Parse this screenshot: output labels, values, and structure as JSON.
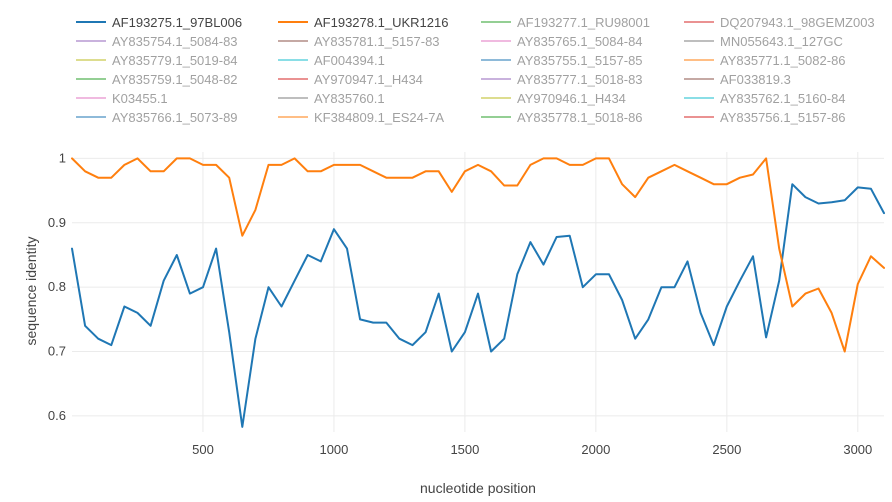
{
  "chart_data": {
    "type": "line",
    "title": "",
    "xlabel": "nucleotide position",
    "ylabel": "sequence identity",
    "xlim": [
      0,
      3100
    ],
    "ylim": [
      0.575,
      1.01
    ],
    "xticks": [
      500,
      1000,
      1500,
      2000,
      2500,
      3000
    ],
    "xtick_labels": [
      "500",
      "1000",
      "1500",
      "2000",
      "2500",
      "3000"
    ],
    "yticks": [
      0.6,
      0.7,
      0.8,
      0.9,
      1
    ],
    "ytick_labels": [
      "0.6",
      "0.7",
      "0.8",
      "0.9",
      "1"
    ],
    "grid": true,
    "legend_position": "top",
    "series": [
      {
        "name": "AF193275.1_97BL006",
        "color": "#1f77b4",
        "visible": true,
        "x": [
          0,
          50,
          100,
          150,
          200,
          250,
          300,
          350,
          400,
          450,
          500,
          550,
          600,
          650,
          700,
          750,
          800,
          850,
          900,
          950,
          1000,
          1050,
          1100,
          1150,
          1200,
          1250,
          1300,
          1350,
          1400,
          1450,
          1500,
          1550,
          1600,
          1650,
          1700,
          1750,
          1800,
          1850,
          1900,
          1950,
          2000,
          2050,
          2100,
          2150,
          2200,
          2250,
          2300,
          2350,
          2400,
          2450,
          2500,
          2550,
          2600,
          2650,
          2700,
          2750,
          2800,
          2850,
          2900,
          2950,
          3000,
          3050,
          3100
        ],
        "y": [
          0.86,
          0.74,
          0.72,
          0.71,
          0.77,
          0.76,
          0.74,
          0.81,
          0.85,
          0.79,
          0.8,
          0.86,
          0.73,
          0.583,
          0.72,
          0.8,
          0.77,
          0.81,
          0.85,
          0.84,
          0.89,
          0.86,
          0.75,
          0.745,
          0.745,
          0.72,
          0.71,
          0.73,
          0.79,
          0.7,
          0.73,
          0.79,
          0.7,
          0.72,
          0.82,
          0.87,
          0.835,
          0.878,
          0.88,
          0.8,
          0.82,
          0.82,
          0.78,
          0.72,
          0.75,
          0.8,
          0.8,
          0.84,
          0.76,
          0.71,
          0.77,
          0.81,
          0.848,
          0.722,
          0.81,
          0.96,
          0.94,
          0.93,
          0.932,
          0.935,
          0.955,
          0.953,
          0.915
        ]
      },
      {
        "name": "AF193278.1_UKR1216",
        "color": "#ff7f0e",
        "visible": true,
        "x": [
          0,
          50,
          100,
          150,
          200,
          250,
          300,
          350,
          400,
          450,
          500,
          550,
          600,
          650,
          700,
          750,
          800,
          850,
          900,
          950,
          1000,
          1050,
          1100,
          1150,
          1200,
          1250,
          1300,
          1350,
          1400,
          1450,
          1500,
          1550,
          1600,
          1650,
          1700,
          1750,
          1800,
          1850,
          1900,
          1950,
          2000,
          2050,
          2100,
          2150,
          2200,
          2250,
          2300,
          2350,
          2400,
          2450,
          2500,
          2550,
          2600,
          2650,
          2700,
          2750,
          2800,
          2850,
          2900,
          2950,
          3000,
          3050,
          3100
        ],
        "y": [
          1.0,
          0.98,
          0.97,
          0.97,
          0.99,
          1.0,
          0.98,
          0.98,
          1.0,
          1.0,
          0.99,
          0.99,
          0.97,
          0.88,
          0.92,
          0.99,
          0.99,
          1.0,
          0.98,
          0.98,
          0.99,
          0.99,
          0.99,
          0.98,
          0.97,
          0.97,
          0.97,
          0.98,
          0.98,
          0.948,
          0.98,
          0.99,
          0.98,
          0.958,
          0.958,
          0.99,
          1.0,
          1.0,
          0.99,
          0.99,
          1.0,
          1.0,
          0.96,
          0.94,
          0.97,
          0.98,
          0.99,
          0.98,
          0.97,
          0.96,
          0.96,
          0.97,
          0.975,
          1.0,
          0.86,
          0.77,
          0.79,
          0.798,
          0.76,
          0.7,
          0.805,
          0.848,
          0.83
        ]
      },
      {
        "name": "AF193277.1_RU98001",
        "color": "#2ca02c",
        "visible": false
      },
      {
        "name": "DQ207943.1_98GEMZ003",
        "color": "#d62728",
        "visible": false
      },
      {
        "name": "AY835754.1_5084-83",
        "color": "#9467bd",
        "visible": false
      },
      {
        "name": "AY835781.1_5157-83",
        "color": "#8c564b",
        "visible": false
      },
      {
        "name": "AY835765.1_5084-84",
        "color": "#e377c2",
        "visible": false
      },
      {
        "name": "MN055643.1_127GC",
        "color": "#7f7f7f",
        "visible": false
      },
      {
        "name": "AY835779.1_5019-84",
        "color": "#bcbd22",
        "visible": false
      },
      {
        "name": "AF004394.1",
        "color": "#17becf",
        "visible": false
      },
      {
        "name": "AY835755.1_5157-85",
        "color": "#1f77b4",
        "visible": false
      },
      {
        "name": "AY835771.1_5082-86",
        "color": "#ff7f0e",
        "visible": false
      },
      {
        "name": "AY835759.1_5048-82",
        "color": "#2ca02c",
        "visible": false
      },
      {
        "name": "AY970947.1_H434",
        "color": "#d62728",
        "visible": false
      },
      {
        "name": "AY835777.1_5018-83",
        "color": "#9467bd",
        "visible": false
      },
      {
        "name": "AF033819.3",
        "color": "#8c564b",
        "visible": false
      },
      {
        "name": "K03455.1",
        "color": "#e377c2",
        "visible": false
      },
      {
        "name": "AY835760.1",
        "color": "#7f7f7f",
        "visible": false
      },
      {
        "name": "AY970946.1_H434",
        "color": "#bcbd22",
        "visible": false
      },
      {
        "name": "AY835762.1_5160-84",
        "color": "#17becf",
        "visible": false
      },
      {
        "name": "AY835766.1_5073-89",
        "color": "#1f77b4",
        "visible": false
      },
      {
        "name": "KF384809.1_ES24-7A",
        "color": "#ff7f0e",
        "visible": false
      },
      {
        "name": "AY835778.1_5018-86",
        "color": "#2ca02c",
        "visible": false
      },
      {
        "name": "AY835756.1_5157-86",
        "color": "#d62728",
        "visible": false
      }
    ]
  }
}
